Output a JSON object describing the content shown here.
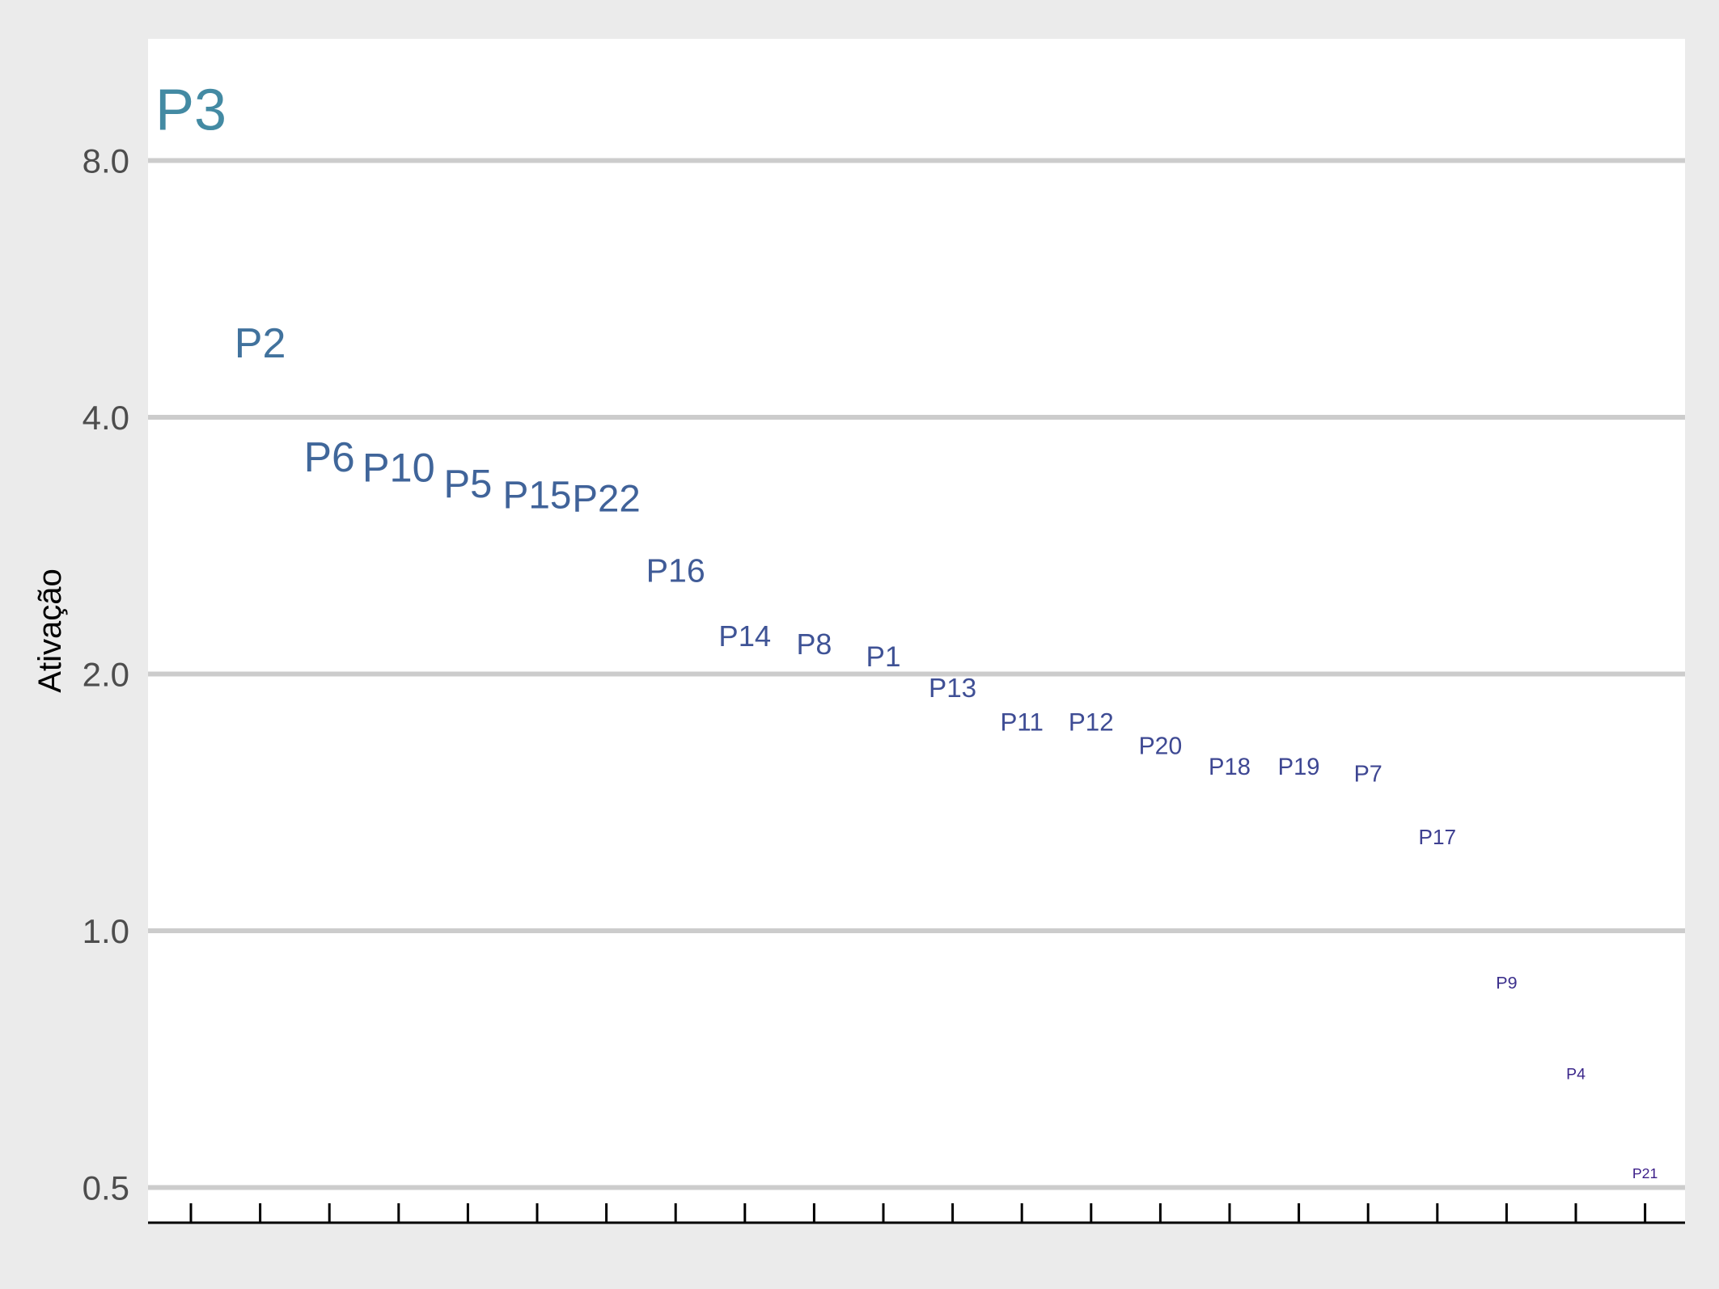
{
  "chart_data": {
    "type": "scatter",
    "title": "",
    "xlabel": "",
    "ylabel": "Ativação",
    "y_scale": "log",
    "ylim": [
      0.46,
      9.6
    ],
    "yticks": [
      0.5,
      1.0,
      2.0,
      4.0,
      8.0
    ],
    "ytick_labels": [
      "0.5",
      "1.0",
      "2.0",
      "4.0",
      "8.0"
    ],
    "grid": "horizontal",
    "x_tick_count": 22,
    "series": [
      {
        "points": [
          {
            "label": "P3",
            "x": 1,
            "y": 9.2
          },
          {
            "label": "P2",
            "x": 2,
            "y": 4.9
          },
          {
            "label": "P6",
            "x": 3,
            "y": 3.6
          },
          {
            "label": "P10",
            "x": 4,
            "y": 3.5
          },
          {
            "label": "P5",
            "x": 5,
            "y": 3.35
          },
          {
            "label": "P15",
            "x": 6,
            "y": 3.25
          },
          {
            "label": "P22",
            "x": 7,
            "y": 3.22
          },
          {
            "label": "P16",
            "x": 8,
            "y": 2.65
          },
          {
            "label": "P14",
            "x": 9,
            "y": 2.22
          },
          {
            "label": "P8",
            "x": 10,
            "y": 2.17
          },
          {
            "label": "P1",
            "x": 11,
            "y": 2.1
          },
          {
            "label": "P13",
            "x": 12,
            "y": 1.93
          },
          {
            "label": "P11",
            "x": 13,
            "y": 1.76
          },
          {
            "label": "P12",
            "x": 14,
            "y": 1.76
          },
          {
            "label": "P20",
            "x": 15,
            "y": 1.65
          },
          {
            "label": "P18",
            "x": 16,
            "y": 1.56
          },
          {
            "label": "P19",
            "x": 17,
            "y": 1.56
          },
          {
            "label": "P7",
            "x": 18,
            "y": 1.53
          },
          {
            "label": "P17",
            "x": 19,
            "y": 1.29
          },
          {
            "label": "P9",
            "x": 20,
            "y": 0.87
          },
          {
            "label": "P4",
            "x": 21,
            "y": 0.68
          },
          {
            "label": "P21",
            "x": 22,
            "y": 0.52
          }
        ]
      }
    ]
  },
  "colors": {
    "panel_background": "#ffffff",
    "outer_background": "#ebebeb",
    "gridline": "#cccccc",
    "axis_line": "#000000",
    "tick_label": "#4d4d4d",
    "high_label": "#438aa3",
    "low_label": "#3b1c88"
  }
}
